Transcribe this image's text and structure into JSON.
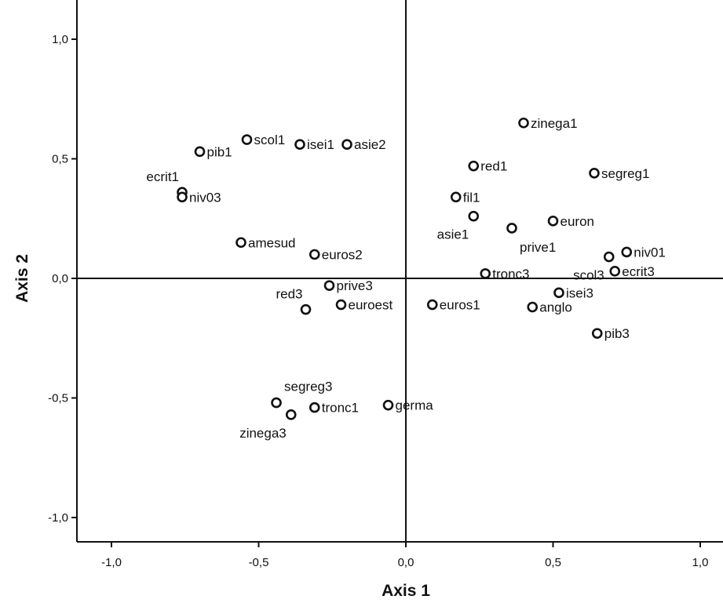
{
  "chart_data": {
    "type": "scatter",
    "title": "",
    "xlabel": "Axis 1",
    "ylabel": "Axis 2",
    "xlim": [
      -1.1,
      1.1
    ],
    "ylim": [
      -1.1,
      1.15
    ],
    "xticks": [
      -1.0,
      -0.5,
      0.0,
      0.5,
      1.0
    ],
    "xtick_labels": [
      "-1,0",
      "-0,5",
      "0,0",
      "0,5",
      "1,0"
    ],
    "yticks": [
      -1.0,
      -0.5,
      0.0,
      0.5,
      1.0
    ],
    "ytick_labels": [
      "-1,0",
      "-0,5",
      "0,0",
      "0,5",
      "1,0"
    ],
    "grid": false,
    "reference_lines": {
      "x": 0,
      "y": 0
    },
    "marker": "open-circle",
    "points": [
      {
        "label": "zinega1",
        "x": 0.4,
        "y": 0.65,
        "label_pos": "right"
      },
      {
        "label": "red1",
        "x": 0.23,
        "y": 0.47,
        "label_pos": "right"
      },
      {
        "label": "segreg1",
        "x": 0.64,
        "y": 0.44,
        "label_pos": "right"
      },
      {
        "label": "fil1",
        "x": 0.17,
        "y": 0.34,
        "label_pos": "right"
      },
      {
        "label": "asie1",
        "x": 0.23,
        "y": 0.26,
        "label_pos": "below-left"
      },
      {
        "label": "euron",
        "x": 0.5,
        "y": 0.24,
        "label_pos": "right"
      },
      {
        "label": "prive1",
        "x": 0.36,
        "y": 0.21,
        "label_pos": "below-right"
      },
      {
        "label": "niv01",
        "x": 0.75,
        "y": 0.11,
        "label_pos": "right"
      },
      {
        "label": "scol3",
        "x": 0.69,
        "y": 0.09,
        "label_pos": "below-left"
      },
      {
        "label": "ecrit3",
        "x": 0.71,
        "y": 0.03,
        "label_pos": "right"
      },
      {
        "label": "tronc3",
        "x": 0.27,
        "y": 0.02,
        "label_pos": "right"
      },
      {
        "label": "isei3",
        "x": 0.52,
        "y": -0.06,
        "label_pos": "right"
      },
      {
        "label": "anglo",
        "x": 0.43,
        "y": -0.12,
        "label_pos": "right"
      },
      {
        "label": "pib3",
        "x": 0.65,
        "y": -0.23,
        "label_pos": "right"
      },
      {
        "label": "euros1",
        "x": 0.09,
        "y": -0.11,
        "label_pos": "right"
      },
      {
        "label": "euroest",
        "x": -0.22,
        "y": -0.11,
        "label_pos": "right"
      },
      {
        "label": "prive3",
        "x": -0.26,
        "y": -0.03,
        "label_pos": "right"
      },
      {
        "label": "red3",
        "x": -0.34,
        "y": -0.13,
        "label_pos": "above-left"
      },
      {
        "label": "euros2",
        "x": -0.31,
        "y": 0.1,
        "label_pos": "right"
      },
      {
        "label": "amesud",
        "x": -0.56,
        "y": 0.15,
        "label_pos": "right"
      },
      {
        "label": "pib1",
        "x": -0.7,
        "y": 0.53,
        "label_pos": "right"
      },
      {
        "label": "scol1",
        "x": -0.54,
        "y": 0.58,
        "label_pos": "right"
      },
      {
        "label": "isei1",
        "x": -0.36,
        "y": 0.56,
        "label_pos": "right"
      },
      {
        "label": "asie2",
        "x": -0.2,
        "y": 0.56,
        "label_pos": "right"
      },
      {
        "label": "ecrit1",
        "x": -0.76,
        "y": 0.36,
        "label_pos": "above-left"
      },
      {
        "label": "niv03",
        "x": -0.76,
        "y": 0.34,
        "label_pos": "right"
      },
      {
        "label": "segreg3",
        "x": -0.44,
        "y": -0.52,
        "label_pos": "above-right"
      },
      {
        "label": "zinega3",
        "x": -0.39,
        "y": -0.57,
        "label_pos": "below-left"
      },
      {
        "label": "tronc1",
        "x": -0.31,
        "y": -0.54,
        "label_pos": "right"
      },
      {
        "label": "germa",
        "x": -0.06,
        "y": -0.53,
        "label_pos": "right"
      }
    ]
  }
}
